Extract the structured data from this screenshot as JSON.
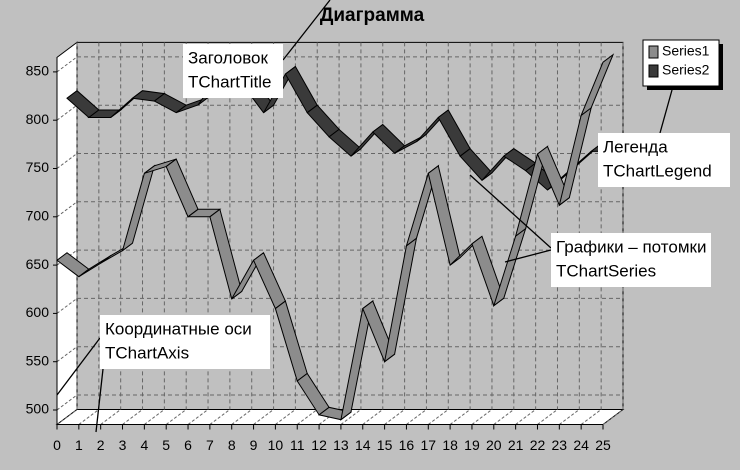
{
  "chart_data": {
    "type": "line",
    "title": "Диаграмма",
    "x": [
      0,
      1,
      2,
      3,
      4,
      5,
      6,
      7,
      8,
      9,
      10,
      11,
      12,
      13,
      14,
      15,
      16,
      17,
      18,
      19,
      20,
      21,
      22,
      23,
      24,
      25
    ],
    "xlim": [
      0,
      25
    ],
    "xticks": [
      0,
      1,
      2,
      3,
      4,
      5,
      6,
      7,
      8,
      9,
      10,
      11,
      12,
      13,
      14,
      15,
      16,
      17,
      18,
      19,
      20,
      21,
      22,
      23,
      24,
      25
    ],
    "ylim": [
      485,
      865
    ],
    "yticks": [
      500,
      550,
      600,
      650,
      700,
      750,
      800,
      850
    ],
    "grid": true,
    "legend": "top-right",
    "series": [
      {
        "name": "Series1",
        "color": "#8c8c8c",
        "values": [
          655,
          638,
          652,
          665,
          745,
          752,
          700,
          700,
          615,
          655,
          605,
          530,
          495,
          490,
          605,
          550,
          670,
          745,
          650,
          672,
          608,
          680,
          765,
          712,
          805,
          860
        ]
      },
      {
        "name": "Series2",
        "color": "#3a3a3a",
        "values": [
          815,
          795,
          795,
          815,
          812,
          800,
          808,
          840,
          830,
          800,
          840,
          800,
          775,
          755,
          780,
          758,
          770,
          795,
          755,
          730,
          755,
          740,
          720,
          740,
          760,
          760
        ]
      }
    ],
    "annotations": [
      {
        "lines": [
          "Заголовок",
          "TChartTitle"
        ]
      },
      {
        "lines": [
          "Легенда",
          "TChartLegend"
        ]
      },
      {
        "lines": [
          "Графики – потомки",
          "TChartSeries"
        ]
      },
      {
        "lines": [
          "Координатные оси",
          "TChartAxis"
        ]
      }
    ]
  }
}
